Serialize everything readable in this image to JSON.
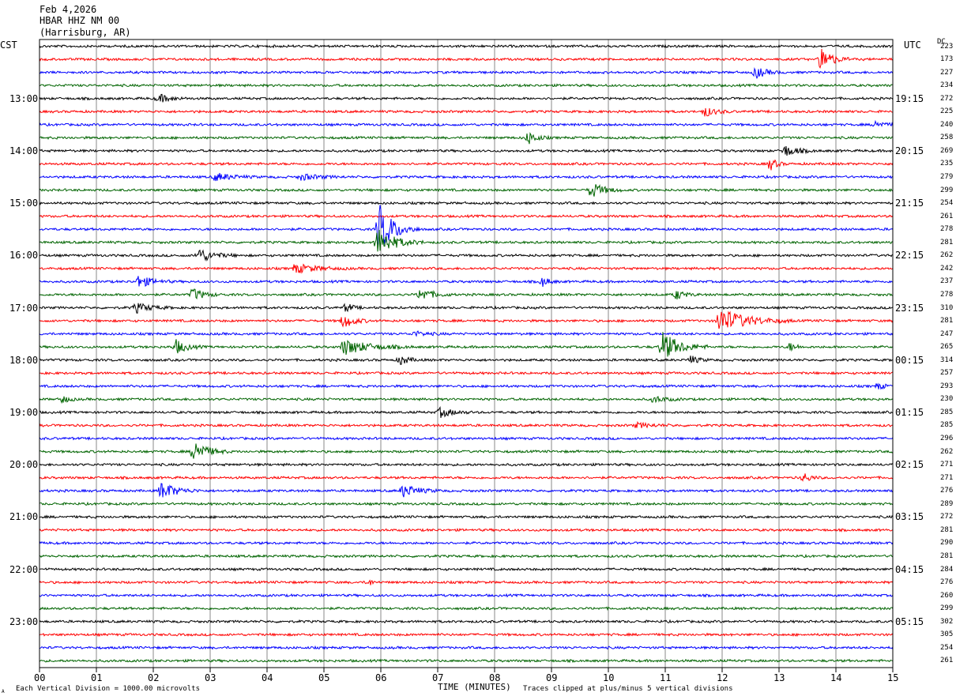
{
  "header": {
    "date": "Feb 4,2026",
    "station": "HBAR HHZ NM 00",
    "location": "(Harrisburg, AR)"
  },
  "labels": {
    "left_tz": "CST",
    "right_tz": "UTC",
    "dc": "DC",
    "xlabel": "TIME (MINUTES)",
    "scale_note": "Each Vertical Division = 1000.00 microvolts",
    "clip_note": "Traces clipped at plus/minus 5 vertical divisions",
    "corner_mark": "A"
  },
  "chart_data": {
    "type": "helicorder",
    "x_ticks": [
      "00",
      "01",
      "02",
      "03",
      "04",
      "05",
      "06",
      "07",
      "08",
      "09",
      "10",
      "11",
      "12",
      "13",
      "14",
      "15"
    ],
    "xlim": [
      0,
      15
    ],
    "trace_colors": [
      "#000000",
      "#ff0000",
      "#0000ff",
      "#006400"
    ],
    "traces_per_hour": 4,
    "left_time_labels": [
      "13:00",
      "14:00",
      "15:00",
      "16:00",
      "17:00",
      "18:00",
      "19:00",
      "20:00",
      "21:00",
      "22:00",
      "23:00"
    ],
    "right_time_labels": [
      "19:15",
      "20:15",
      "21:15",
      "22:15",
      "23:15",
      "00:15",
      "01:15",
      "02:15",
      "03:15",
      "04:15",
      "05:15"
    ],
    "first_labeled_row": 4,
    "dc_values": [
      "223",
      "173",
      "227",
      "234",
      "272",
      "225",
      "240",
      "258",
      "269",
      "235",
      "279",
      "299",
      "254",
      "261",
      "278",
      "281",
      "262",
      "242",
      "237",
      "278",
      "310",
      "281",
      "247",
      "265",
      "314",
      "257",
      "293",
      "230",
      "285",
      "285",
      "296",
      "262",
      "271",
      "271",
      "276",
      "289",
      "272",
      "281",
      "290",
      "281",
      "284",
      "276",
      "260",
      "299",
      "302",
      "305",
      "254",
      "261"
    ],
    "events": [
      {
        "row": 1,
        "minute": 13.75,
        "amp": 1.6,
        "dur": 0.5
      },
      {
        "row": 2,
        "minute": 12.6,
        "amp": 0.7,
        "dur": 0.5
      },
      {
        "row": 4,
        "minute": 2.1,
        "amp": 0.5,
        "dur": 0.6
      },
      {
        "row": 5,
        "minute": 11.7,
        "amp": 0.6,
        "dur": 0.5
      },
      {
        "row": 6,
        "minute": 14.7,
        "amp": 0.5,
        "dur": 0.4
      },
      {
        "row": 7,
        "minute": 8.6,
        "amp": 0.8,
        "dur": 0.4
      },
      {
        "row": 8,
        "minute": 13.1,
        "amp": 0.7,
        "dur": 0.6
      },
      {
        "row": 9,
        "minute": 12.85,
        "amp": 0.8,
        "dur": 0.3
      },
      {
        "row": 10,
        "minute": 3.1,
        "amp": 0.5,
        "dur": 0.8
      },
      {
        "row": 10,
        "minute": 4.6,
        "amp": 0.4,
        "dur": 0.8
      },
      {
        "row": 11,
        "minute": 9.7,
        "amp": 1.0,
        "dur": 0.6
      },
      {
        "row": 14,
        "minute": 5.97,
        "amp": 3.2,
        "dur": 0.7
      },
      {
        "row": 15,
        "minute": 5.95,
        "amp": 1.8,
        "dur": 0.8
      },
      {
        "row": 16,
        "minute": 2.8,
        "amp": 0.9,
        "dur": 0.7
      },
      {
        "row": 17,
        "minute": 4.5,
        "amp": 0.6,
        "dur": 1.0
      },
      {
        "row": 18,
        "minute": 1.75,
        "amp": 0.8,
        "dur": 0.6
      },
      {
        "row": 18,
        "minute": 8.85,
        "amp": 0.6,
        "dur": 0.3
      },
      {
        "row": 19,
        "minute": 2.7,
        "amp": 0.8,
        "dur": 0.5
      },
      {
        "row": 19,
        "minute": 6.7,
        "amp": 0.8,
        "dur": 0.6
      },
      {
        "row": 19,
        "minute": 11.2,
        "amp": 0.6,
        "dur": 0.4
      },
      {
        "row": 20,
        "minute": 1.7,
        "amp": 0.6,
        "dur": 0.7
      },
      {
        "row": 20,
        "minute": 5.4,
        "amp": 0.6,
        "dur": 0.3
      },
      {
        "row": 21,
        "minute": 5.35,
        "amp": 0.9,
        "dur": 0.5
      },
      {
        "row": 21,
        "minute": 11.95,
        "amp": 1.6,
        "dur": 1.3
      },
      {
        "row": 22,
        "minute": 6.6,
        "amp": 0.3,
        "dur": 0.6
      },
      {
        "row": 23,
        "minute": 2.4,
        "amp": 0.9,
        "dur": 0.5
      },
      {
        "row": 23,
        "minute": 5.35,
        "amp": 1.0,
        "dur": 1.2
      },
      {
        "row": 23,
        "minute": 10.95,
        "amp": 1.9,
        "dur": 0.8
      },
      {
        "row": 23,
        "minute": 13.2,
        "amp": 0.5,
        "dur": 0.3
      },
      {
        "row": 24,
        "minute": 6.35,
        "amp": 0.6,
        "dur": 0.4
      },
      {
        "row": 24,
        "minute": 11.45,
        "amp": 0.5,
        "dur": 0.4
      },
      {
        "row": 26,
        "minute": 14.75,
        "amp": 0.4,
        "dur": 0.3
      },
      {
        "row": 27,
        "minute": 0.4,
        "amp": 0.5,
        "dur": 0.3
      },
      {
        "row": 27,
        "minute": 10.8,
        "amp": 0.4,
        "dur": 0.6
      },
      {
        "row": 28,
        "minute": 7.05,
        "amp": 0.6,
        "dur": 0.6
      },
      {
        "row": 29,
        "minute": 10.5,
        "amp": 0.3,
        "dur": 0.8
      },
      {
        "row": 31,
        "minute": 2.72,
        "amp": 1.5,
        "dur": 0.6
      },
      {
        "row": 33,
        "minute": 13.45,
        "amp": 0.6,
        "dur": 0.3
      },
      {
        "row": 34,
        "minute": 2.15,
        "amp": 1.1,
        "dur": 0.7
      },
      {
        "row": 34,
        "minute": 6.4,
        "amp": 0.8,
        "dur": 0.7
      },
      {
        "row": 41,
        "minute": 5.8,
        "amp": 0.6,
        "dur": 0.1
      }
    ]
  }
}
